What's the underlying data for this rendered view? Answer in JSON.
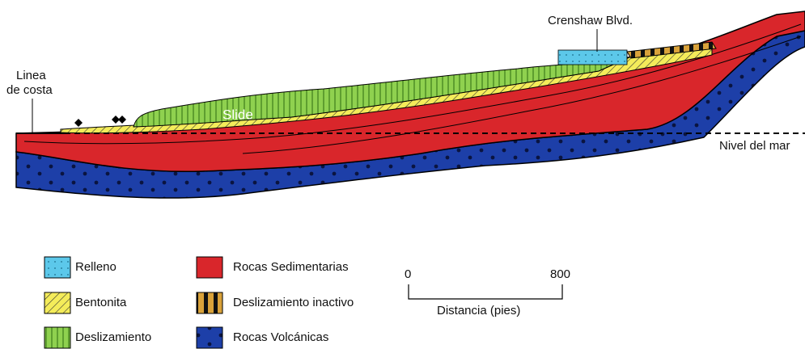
{
  "labels": {
    "crenshaw": "Crenshaw Blvd.",
    "coastline": [
      "Linea",
      "de costa"
    ],
    "slide": "Slide",
    "sea_level": "Nivel del mar"
  },
  "legend": [
    {
      "label": "Relleno"
    },
    {
      "label": "Bentonita"
    },
    {
      "label": "Deslizamiento"
    },
    {
      "label": "Rocas Sedimentarias"
    },
    {
      "label": "Deslizamiento inactivo"
    },
    {
      "label": "Rocas Volcánicas"
    }
  ],
  "scale": {
    "start": 0,
    "end": 800,
    "label": "Distancia (pies)"
  }
}
